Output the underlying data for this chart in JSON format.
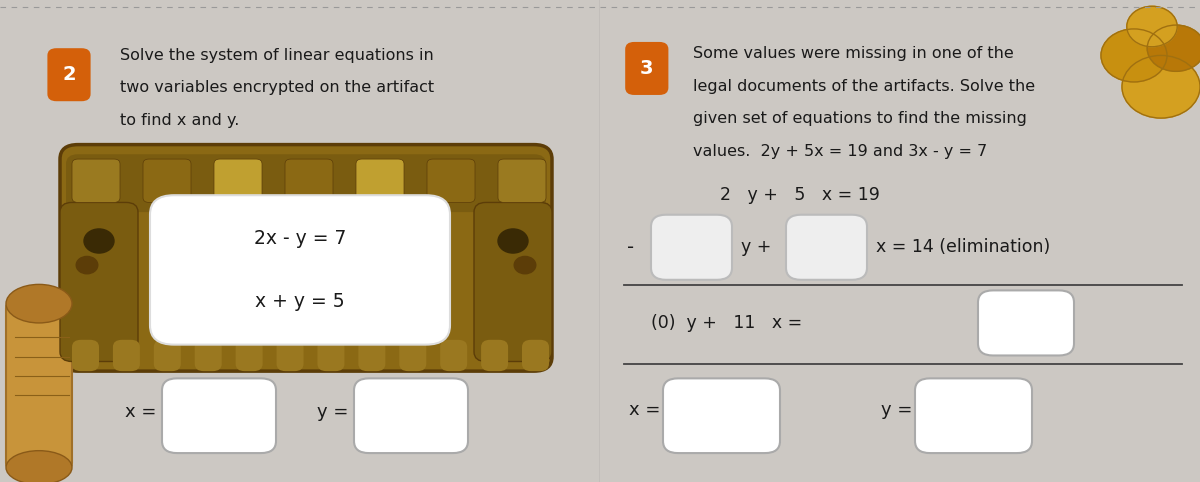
{
  "bg_color": "#ccc8c3",
  "panel1_bg": "#cdc9c4",
  "panel2_bg": "#cdc9c4",
  "orange_badge_color": "#d4600a",
  "badge_text_color": "#ffffff",
  "title_color": "#1a1a1a",
  "dashed_border_color": "#999999",
  "panel1_badge": "2",
  "panel1_title_line1": "Solve the system of linear equations in",
  "panel1_title_line2": "two variables encrypted on the artifact",
  "panel1_title_line3": "to find x and y.",
  "panel1_eq1": "2x - y = 7",
  "panel1_eq2": "x + y = 5",
  "panel1_xlabel": "x =",
  "panel1_ylabel": "y =",
  "panel2_badge": "3",
  "panel2_title_line1": "Some values were missing in one of the",
  "panel2_title_line2": "legal documents of the artifacts. Solve the",
  "panel2_title_line3": "given set of equations to find the missing",
  "panel2_title_line4": "values.  2y + 5x = 19 and 3x - y = 7",
  "panel2_row1": "2   y +   5   x = 19",
  "panel2_row2_minus": "-",
  "panel2_row2_yplus": "y +",
  "panel2_row2_suffix": "x = 14 (elimination)",
  "panel2_row3": "(0)  y +   11   x =",
  "panel2_xlabel": "x =",
  "panel2_ylabel": "y =",
  "artifact_frame_color": "#8b6914",
  "artifact_frame_dark": "#5c3d08",
  "artifact_inner_bg": "#a07828",
  "artifact_white_box": "#ffffff",
  "scroll_color": "#b8863a",
  "coin_color1": "#d4a020",
  "coin_color2": "#c09010",
  "coin_color3": "#b07808"
}
